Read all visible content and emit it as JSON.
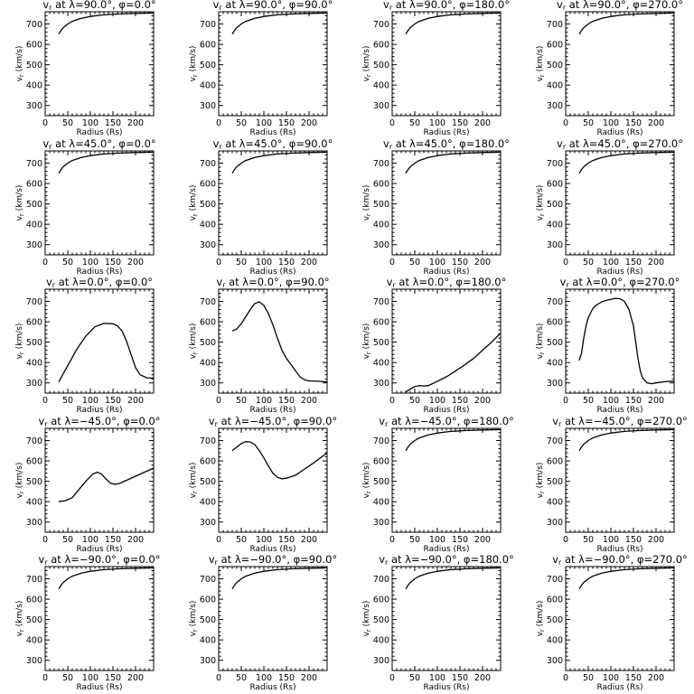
{
  "chart_data": [
    {
      "type": "line",
      "title": "vr at λ=90.0°, φ=0.0°",
      "xlabel": "Radius (Rs)",
      "ylabel": "vr (km/s)",
      "xlim": [
        0,
        240
      ],
      "ylim": [
        250,
        760
      ],
      "x": [
        30,
        35,
        40,
        50,
        60,
        80,
        100,
        130,
        160,
        200,
        240
      ],
      "y": [
        650,
        668,
        682,
        700,
        713,
        728,
        737,
        745,
        749,
        752,
        754
      ]
    },
    {
      "type": "line",
      "title": "vr at λ=90.0°, φ=90.0°",
      "xlabel": "Radius (Rs)",
      "ylabel": "vr (km/s)",
      "xlim": [
        0,
        240
      ],
      "ylim": [
        250,
        760
      ],
      "x": [
        30,
        35,
        40,
        50,
        60,
        80,
        100,
        130,
        160,
        200,
        240
      ],
      "y": [
        650,
        668,
        682,
        700,
        713,
        728,
        737,
        745,
        749,
        752,
        754
      ]
    },
    {
      "type": "line",
      "title": "vr at λ=90.0°, φ=180.0°",
      "xlabel": "Radius (Rs)",
      "ylabel": "vr (km/s)",
      "xlim": [
        0,
        240
      ],
      "ylim": [
        250,
        760
      ],
      "x": [
        30,
        35,
        40,
        50,
        60,
        80,
        100,
        130,
        160,
        200,
        240
      ],
      "y": [
        650,
        668,
        682,
        700,
        713,
        728,
        737,
        745,
        749,
        752,
        754
      ]
    },
    {
      "type": "line",
      "title": "vr at λ=90.0°, φ=270.0°",
      "xlabel": "Radius (Rs)",
      "ylabel": "vr (km/s)",
      "xlim": [
        0,
        240
      ],
      "ylim": [
        250,
        760
      ],
      "x": [
        30,
        35,
        40,
        50,
        60,
        80,
        100,
        130,
        160,
        200,
        240
      ],
      "y": [
        650,
        668,
        682,
        700,
        713,
        728,
        737,
        745,
        749,
        752,
        754
      ]
    },
    {
      "type": "line",
      "title": "vr at λ=45.0°, φ=0.0°",
      "xlabel": "Radius (Rs)",
      "ylabel": "vr (km/s)",
      "xlim": [
        0,
        240
      ],
      "ylim": [
        250,
        760
      ],
      "x": [
        30,
        35,
        40,
        50,
        60,
        80,
        100,
        130,
        160,
        200,
        240
      ],
      "y": [
        650,
        668,
        682,
        700,
        713,
        728,
        737,
        745,
        749,
        752,
        754
      ]
    },
    {
      "type": "line",
      "title": "vr at λ=45.0°, φ=90.0°",
      "xlabel": "Radius (Rs)",
      "ylabel": "vr (km/s)",
      "xlim": [
        0,
        240
      ],
      "ylim": [
        250,
        760
      ],
      "x": [
        30,
        35,
        40,
        50,
        60,
        80,
        100,
        130,
        160,
        200,
        240
      ],
      "y": [
        650,
        668,
        682,
        700,
        713,
        728,
        737,
        745,
        749,
        752,
        754
      ]
    },
    {
      "type": "line",
      "title": "vr at λ=45.0°, φ=180.0°",
      "xlabel": "Radius (Rs)",
      "ylabel": "vr (km/s)",
      "xlim": [
        0,
        240
      ],
      "ylim": [
        250,
        760
      ],
      "x": [
        30,
        35,
        40,
        50,
        60,
        80,
        100,
        130,
        160,
        200,
        240
      ],
      "y": [
        650,
        668,
        682,
        700,
        713,
        728,
        737,
        745,
        749,
        752,
        754
      ]
    },
    {
      "type": "line",
      "title": "vr at λ=45.0°, φ=270.0°",
      "xlabel": "Radius (Rs)",
      "ylabel": "vr (km/s)",
      "xlim": [
        0,
        240
      ],
      "ylim": [
        250,
        760
      ],
      "x": [
        30,
        35,
        40,
        50,
        60,
        80,
        100,
        130,
        160,
        200,
        240
      ],
      "y": [
        650,
        668,
        682,
        700,
        713,
        728,
        737,
        745,
        749,
        752,
        754
      ]
    },
    {
      "type": "line",
      "title": "vr at λ=0.0°, φ=0.0°",
      "xlabel": "Radius (Rs)",
      "ylabel": "vr (km/s)",
      "xlim": [
        0,
        240
      ],
      "ylim": [
        250,
        760
      ],
      "x": [
        30,
        50,
        70,
        90,
        110,
        130,
        150,
        160,
        170,
        180,
        190,
        200,
        210,
        225,
        240
      ],
      "y": [
        305,
        385,
        465,
        530,
        575,
        592,
        590,
        580,
        555,
        505,
        440,
        375,
        340,
        325,
        323
      ]
    },
    {
      "type": "line",
      "title": "vr at λ=0.0°, φ=90.0°",
      "xlabel": "Radius (Rs)",
      "ylabel": "vr (km/s)",
      "xlim": [
        0,
        240
      ],
      "ylim": [
        250,
        760
      ],
      "x": [
        30,
        40,
        50,
        60,
        70,
        80,
        90,
        100,
        110,
        120,
        130,
        140,
        150,
        160,
        170,
        180,
        190,
        200,
        220,
        240
      ],
      "y": [
        555,
        565,
        590,
        625,
        660,
        690,
        698,
        680,
        640,
        585,
        520,
        460,
        420,
        390,
        360,
        330,
        315,
        310,
        308,
        305
      ]
    },
    {
      "type": "line",
      "title": "vr at λ=0.0°, φ=180.0°",
      "xlabel": "Radius (Rs)",
      "ylabel": "vr (km/s)",
      "xlim": [
        0,
        240
      ],
      "ylim": [
        250,
        760
      ],
      "x": [
        30,
        40,
        50,
        60,
        70,
        80,
        90,
        100,
        120,
        140,
        160,
        180,
        200,
        220,
        240
      ],
      "y": [
        255,
        270,
        282,
        287,
        285,
        287,
        297,
        308,
        330,
        358,
        388,
        420,
        460,
        500,
        545
      ]
    },
    {
      "type": "line",
      "title": "vr at λ=0.0°, φ=270.0°",
      "xlabel": "Radius (Rs)",
      "ylabel": "vr (km/s)",
      "xlim": [
        0,
        240
      ],
      "ylim": [
        250,
        760
      ],
      "x": [
        30,
        35,
        40,
        45,
        50,
        60,
        70,
        80,
        90,
        100,
        110,
        120,
        130,
        140,
        150,
        155,
        160,
        165,
        170,
        180,
        190,
        200,
        220,
        240
      ],
      "y": [
        410,
        445,
        520,
        580,
        620,
        665,
        685,
        698,
        705,
        710,
        715,
        713,
        700,
        660,
        580,
        500,
        420,
        360,
        325,
        300,
        296,
        300,
        306,
        309
      ]
    },
    {
      "type": "line",
      "title": "vr at λ=−45.0°, φ=0.0°",
      "xlabel": "Radius (Rs)",
      "ylabel": "vr (km/s)",
      "xlim": [
        0,
        240
      ],
      "ylim": [
        250,
        760
      ],
      "x": [
        30,
        45,
        60,
        75,
        90,
        105,
        115,
        125,
        135,
        145,
        155,
        165,
        180,
        200,
        220,
        240
      ],
      "y": [
        400,
        405,
        420,
        460,
        500,
        535,
        545,
        535,
        510,
        490,
        485,
        490,
        505,
        525,
        545,
        565
      ]
    },
    {
      "type": "line",
      "title": "vr at λ=−45.0°, φ=90.0°",
      "xlabel": "Radius (Rs)",
      "ylabel": "vr (km/s)",
      "xlim": [
        0,
        240
      ],
      "ylim": [
        250,
        760
      ],
      "x": [
        30,
        40,
        50,
        60,
        70,
        80,
        90,
        100,
        110,
        120,
        130,
        140,
        150,
        170,
        190,
        210,
        240
      ],
      "y": [
        650,
        668,
        685,
        695,
        693,
        680,
        650,
        615,
        575,
        540,
        520,
        512,
        515,
        530,
        560,
        590,
        640
      ]
    },
    {
      "type": "line",
      "title": "vr at λ=−45.0°, φ=180.0°",
      "xlabel": "Radius (Rs)",
      "ylabel": "vr (km/s)",
      "xlim": [
        0,
        240
      ],
      "ylim": [
        250,
        760
      ],
      "x": [
        30,
        35,
        40,
        50,
        60,
        80,
        100,
        130,
        160,
        200,
        240
      ],
      "y": [
        650,
        668,
        682,
        700,
        713,
        728,
        737,
        745,
        749,
        752,
        754
      ]
    },
    {
      "type": "line",
      "title": "vr at λ=−45.0°, φ=270.0°",
      "xlabel": "Radius (Rs)",
      "ylabel": "vr (km/s)",
      "xlim": [
        0,
        240
      ],
      "ylim": [
        250,
        760
      ],
      "x": [
        30,
        35,
        40,
        50,
        60,
        80,
        100,
        130,
        160,
        200,
        240
      ],
      "y": [
        650,
        668,
        682,
        700,
        713,
        728,
        737,
        745,
        749,
        752,
        754
      ]
    },
    {
      "type": "line",
      "title": "vr at λ=−90.0°, φ=0.0°",
      "xlabel": "Radius (Rs)",
      "ylabel": "vr (km/s)",
      "xlim": [
        0,
        240
      ],
      "ylim": [
        250,
        760
      ],
      "x": [
        30,
        35,
        40,
        50,
        60,
        80,
        100,
        130,
        160,
        200,
        240
      ],
      "y": [
        650,
        668,
        682,
        700,
        713,
        728,
        737,
        745,
        749,
        752,
        754
      ]
    },
    {
      "type": "line",
      "title": "vr at λ=−90.0°, φ=90.0°",
      "xlabel": "Radius (Rs)",
      "ylabel": "vr (km/s)",
      "xlim": [
        0,
        240
      ],
      "ylim": [
        250,
        760
      ],
      "x": [
        30,
        35,
        40,
        50,
        60,
        80,
        100,
        130,
        160,
        200,
        240
      ],
      "y": [
        650,
        668,
        682,
        700,
        713,
        728,
        737,
        745,
        749,
        752,
        754
      ]
    },
    {
      "type": "line",
      "title": "vr at λ=−90.0°, φ=180.0°",
      "xlabel": "Radius (Rs)",
      "ylabel": "vr (km/s)",
      "xlim": [
        0,
        240
      ],
      "ylim": [
        250,
        760
      ],
      "x": [
        30,
        35,
        40,
        50,
        60,
        80,
        100,
        130,
        160,
        200,
        240
      ],
      "y": [
        650,
        668,
        682,
        700,
        713,
        728,
        737,
        745,
        749,
        752,
        754
      ]
    },
    {
      "type": "line",
      "title": "vr at λ=−90.0°, φ=270.0°",
      "xlabel": "Radius (Rs)",
      "ylabel": "vr (km/s)",
      "xlim": [
        0,
        240
      ],
      "ylim": [
        250,
        760
      ],
      "x": [
        30,
        35,
        40,
        50,
        60,
        80,
        100,
        130,
        160,
        200,
        240
      ],
      "y": [
        650,
        668,
        682,
        700,
        713,
        728,
        737,
        745,
        749,
        752,
        754
      ]
    }
  ],
  "axes": {
    "xticks": [
      0,
      50,
      100,
      150,
      200
    ],
    "yticks": [
      300,
      400,
      500,
      600,
      700
    ]
  }
}
